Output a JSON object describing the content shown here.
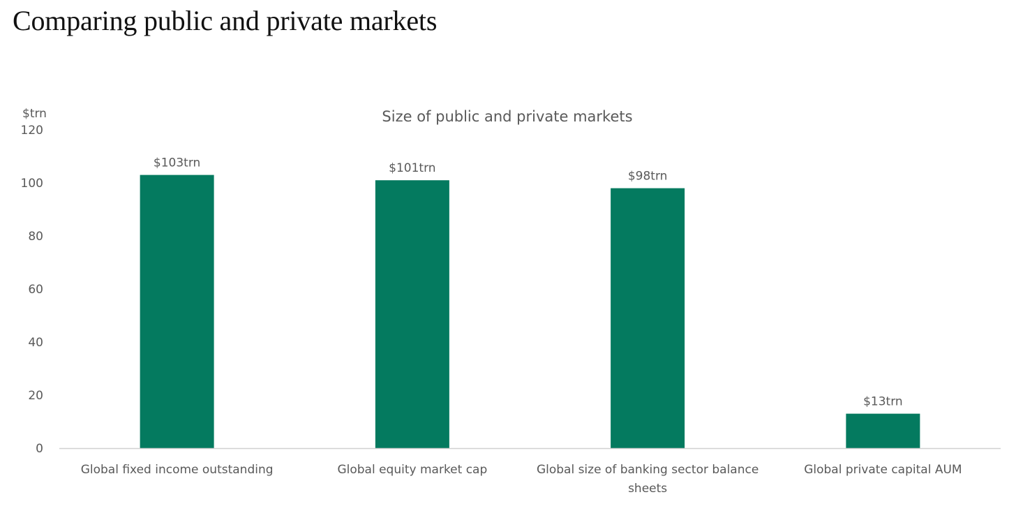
{
  "page": {
    "heading": "Comparing public and private markets"
  },
  "chart_data": {
    "type": "bar",
    "title": "Size of public and private markets",
    "ylabel": "$trn",
    "xlabel": "",
    "categories": [
      [
        "Global fixed income outstanding"
      ],
      [
        "Global equity market cap"
      ],
      [
        "Global size of banking sector balance",
        "sheets"
      ],
      [
        "Global private capital AUM"
      ]
    ],
    "values": [
      103,
      101,
      98,
      13
    ],
    "data_labels": [
      "$103trn",
      "$101trn",
      "$98trn",
      "$13trn"
    ],
    "ylim": [
      0,
      120
    ],
    "yticks": [
      0,
      20,
      40,
      60,
      80,
      100,
      120
    ],
    "grid": false,
    "legend": "none",
    "colors": {
      "bar": "#047a5f",
      "axis": "#d0d0d0",
      "text": "#595959"
    }
  }
}
